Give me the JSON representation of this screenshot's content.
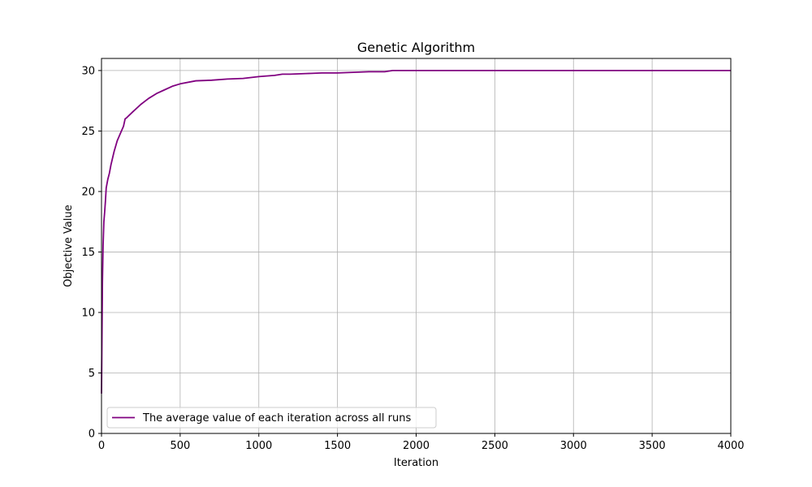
{
  "chart_data": {
    "type": "line",
    "title": "Genetic Algorithm",
    "xlabel": "Iteration",
    "ylabel": "Objective Value",
    "xlim": [
      0,
      4000
    ],
    "ylim": [
      0,
      31
    ],
    "x_ticks": [
      0,
      500,
      1000,
      1500,
      2000,
      2500,
      3000,
      3500,
      4000
    ],
    "y_ticks": [
      0,
      5,
      10,
      15,
      20,
      25,
      30
    ],
    "grid": true,
    "legend_position": "lower-left",
    "series": [
      {
        "name": "The average value of each iteration across all runs",
        "color": "#800080",
        "x": [
          0,
          3,
          6,
          10,
          15,
          20,
          25,
          30,
          40,
          50,
          60,
          80,
          100,
          120,
          140,
          150,
          160,
          200,
          250,
          300,
          350,
          400,
          450,
          500,
          600,
          700,
          800,
          900,
          1000,
          1100,
          1150,
          1200,
          1300,
          1400,
          1500,
          1600,
          1700,
          1800,
          1850,
          1900,
          2000,
          2500,
          3000,
          3500,
          4000
        ],
        "y": [
          3.3,
          8.0,
          12.5,
          15.5,
          17.5,
          18.3,
          19.2,
          20.3,
          21.0,
          21.5,
          22.2,
          23.3,
          24.2,
          24.8,
          25.4,
          26.0,
          26.1,
          26.6,
          27.2,
          27.7,
          28.1,
          28.4,
          28.7,
          28.9,
          29.15,
          29.2,
          29.3,
          29.35,
          29.5,
          29.6,
          29.7,
          29.7,
          29.75,
          29.8,
          29.8,
          29.85,
          29.9,
          29.9,
          30.0,
          30.0,
          30.0,
          30.0,
          30.0,
          30.0,
          30.0
        ]
      }
    ]
  }
}
